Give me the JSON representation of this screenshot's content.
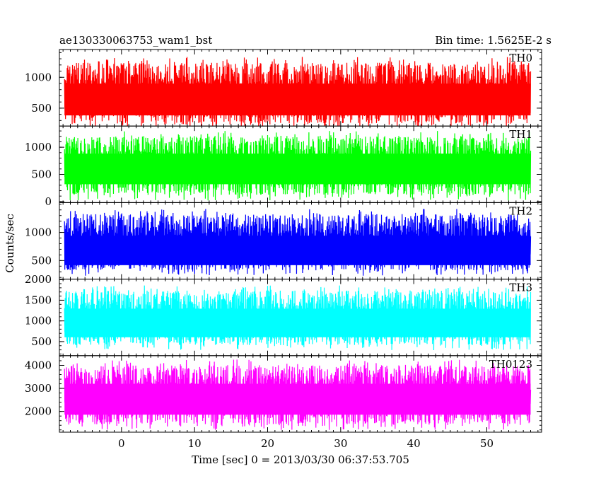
{
  "chart_data": {
    "type": "line",
    "title_left": "ae130330063753_wam1_bst",
    "title_right": "Bin time: 1.5625E-2 s",
    "xlabel": "Time [sec] 0 = 2013/03/30 06:37:53.705",
    "ylabel": "Counts/sec",
    "xlim": [
      -8.5,
      57.5
    ],
    "x_range_of_data": [
      -7.8,
      56.0
    ],
    "x_ticks": [
      0,
      10,
      20,
      30,
      40,
      50
    ],
    "x_tick_labels": [
      "0",
      "10",
      "20",
      "30",
      "40",
      "50"
    ],
    "bin_time_s": 0.015625,
    "grid": false,
    "panels": [
      {
        "name": "TH0",
        "color": "#ff0000",
        "ylim": [
          210,
          1450
        ],
        "y_ticks": [
          500,
          1000
        ],
        "y_tick_labels": [
          "500",
          "1000"
        ],
        "mean": 640,
        "band_low": 160,
        "band_high": 1330
      },
      {
        "name": "TH1",
        "color": "#00ff00",
        "ylim": [
          -20,
          1390
        ],
        "y_ticks": [
          0,
          500,
          1000
        ],
        "y_tick_labels": [
          "0",
          "500",
          "1000"
        ],
        "mean": 600,
        "band_low": 20,
        "band_high": 1300
      },
      {
        "name": "TH2",
        "color": "#0000ff",
        "ylim": [
          170,
          1530
        ],
        "y_ticks": [
          500,
          1000
        ],
        "y_tick_labels": [
          "500",
          "1000"
        ],
        "mean": 680,
        "band_low": 230,
        "band_high": 1420
      },
      {
        "name": "TH3",
        "color": "#00ffff",
        "ylim": [
          160,
          2010
        ],
        "y_ticks": [
          500,
          1000,
          1500,
          2000
        ],
        "y_tick_labels": [
          "500",
          "1000",
          "1500",
          "2000"
        ],
        "mean": 950,
        "band_low": 290,
        "band_high": 1860
      },
      {
        "name": "TH0123",
        "color": "#ff00ff",
        "ylim": [
          1100,
          4420
        ],
        "y_ticks": [
          2000,
          3000,
          4000
        ],
        "y_tick_labels": [
          "2000",
          "3000",
          "4000"
        ],
        "mean": 2530,
        "band_low": 1200,
        "band_high": 4250
      }
    ]
  }
}
